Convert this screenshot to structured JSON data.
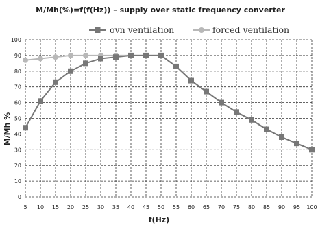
{
  "chart_data": {
    "type": "line",
    "title": "M/Mh(%)=f(f(Hz)) – supply over static frequency converter",
    "xlabel": "f(Hz)",
    "ylabel": "M/Mh %",
    "x": [
      5,
      10,
      15,
      20,
      25,
      30,
      35,
      40,
      45,
      50,
      55,
      60,
      65,
      70,
      75,
      80,
      85,
      90,
      95,
      100
    ],
    "ylim": [
      0,
      100
    ],
    "yticks": [
      0,
      10,
      20,
      30,
      40,
      50,
      60,
      70,
      80,
      90,
      100
    ],
    "grid": true,
    "legend_position": "top",
    "series": [
      {
        "name": "ovn ventilation",
        "color": "#777777",
        "marker": "square",
        "values": [
          44,
          61,
          73,
          80,
          85,
          88,
          89,
          90,
          90,
          90,
          83,
          74,
          67,
          60,
          54,
          49,
          43,
          38,
          34,
          30
        ]
      },
      {
        "name": "forced ventilation",
        "color": "#b8b8b8",
        "marker": "circle",
        "values": [
          87,
          88,
          89,
          90,
          90,
          90,
          90,
          90,
          90,
          90,
          83,
          74,
          67,
          60,
          54,
          49,
          43,
          38,
          34,
          30
        ]
      }
    ]
  }
}
